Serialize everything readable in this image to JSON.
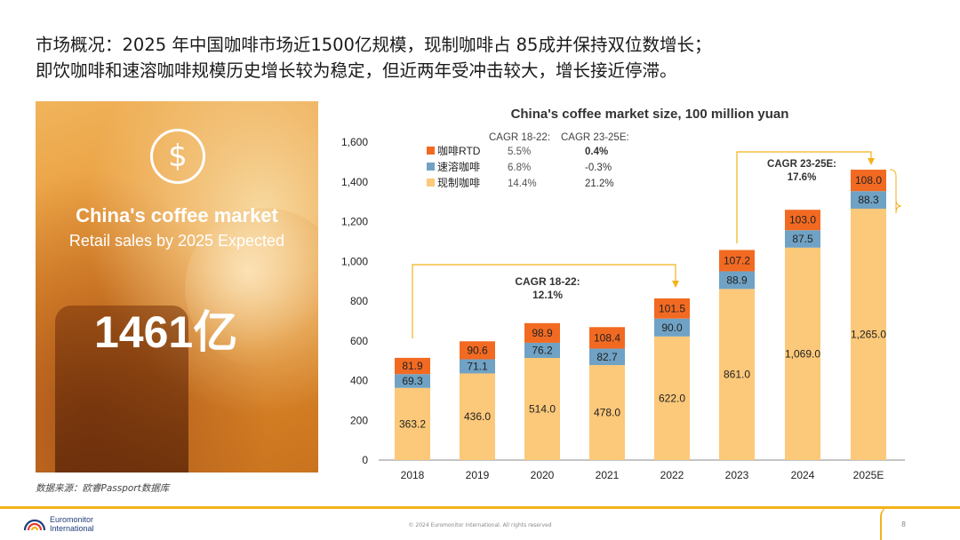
{
  "headline": {
    "line1": "市场概况：2025 年中国咖啡市场近1500亿规模，现制咖啡占 85成并保持双位数增长；",
    "line2": "即饮咖啡和速溶咖啡规模历史增长较为稳定，但近两年受冲击较大，增长接近停滞。"
  },
  "hero": {
    "icon": "dollar-icon",
    "title": "China's coffee market",
    "subtitle": "Retail sales by 2025 Expected",
    "big_number": "1461亿"
  },
  "source": "数据来源：欧睿Passport数据库",
  "footer": {
    "logo_line1": "Euromonitor",
    "logo_line2": "International",
    "copyright": "© 2024 Euromonitor International. All rights reserved",
    "page": "8"
  },
  "chart_data": {
    "type": "bar",
    "stacked": true,
    "title": "China's coffee market size, 100 million yuan",
    "categories": [
      "2018",
      "2019",
      "2020",
      "2021",
      "2022",
      "2023",
      "2024",
      "2025E"
    ],
    "ylim": [
      0,
      1600
    ],
    "yticks": [
      "0",
      "200",
      "400",
      "600",
      "800",
      "1,000",
      "1,200",
      "1,400",
      "1,600"
    ],
    "series": [
      {
        "name": "现制咖啡",
        "color": "#fcc879",
        "values": [
          363.2,
          436.0,
          514.0,
          478.0,
          622.0,
          861.0,
          1069.0,
          1265.0
        ],
        "labels": [
          "363.2",
          "436.0",
          "514.0",
          "478.0",
          "622.0",
          "861.0",
          "1,069.0",
          "1,265.0"
        ]
      },
      {
        "name": "速溶咖啡",
        "color": "#6fa2c4",
        "values": [
          69.3,
          71.1,
          76.2,
          82.7,
          90.0,
          88.9,
          87.5,
          88.3
        ],
        "labels": [
          "69.3",
          "71.1",
          "76.2",
          "82.7",
          "90.0",
          "88.9",
          "87.5",
          "88.3"
        ]
      },
      {
        "name": "咖啡RTD",
        "color": "#f26a22",
        "values": [
          81.9,
          90.6,
          98.9,
          108.4,
          101.5,
          107.2,
          103.0,
          108.0
        ],
        "labels": [
          "81.9",
          "90.6",
          "98.9",
          "108.4",
          "101.5",
          "107.2",
          "103.0",
          "108.0"
        ]
      }
    ],
    "legend_order": [
      "咖啡RTD",
      "速溶咖啡",
      "现制咖啡"
    ],
    "cagr_headers": [
      "CAGR 18-22:",
      "CAGR 23-25E:"
    ],
    "cagr_table": {
      "咖啡RTD": [
        "5.5%",
        "0.4%"
      ],
      "速溶咖啡": [
        "6.8%",
        "-0.3%"
      ],
      "现制咖啡": [
        "14.4%",
        "21.2%"
      ]
    },
    "annotations": [
      {
        "text": "CAGR 18-22:",
        "value": "12.1%"
      },
      {
        "text": "CAGR 23-25E:",
        "value": "17.6%"
      }
    ],
    "grid": false
  }
}
